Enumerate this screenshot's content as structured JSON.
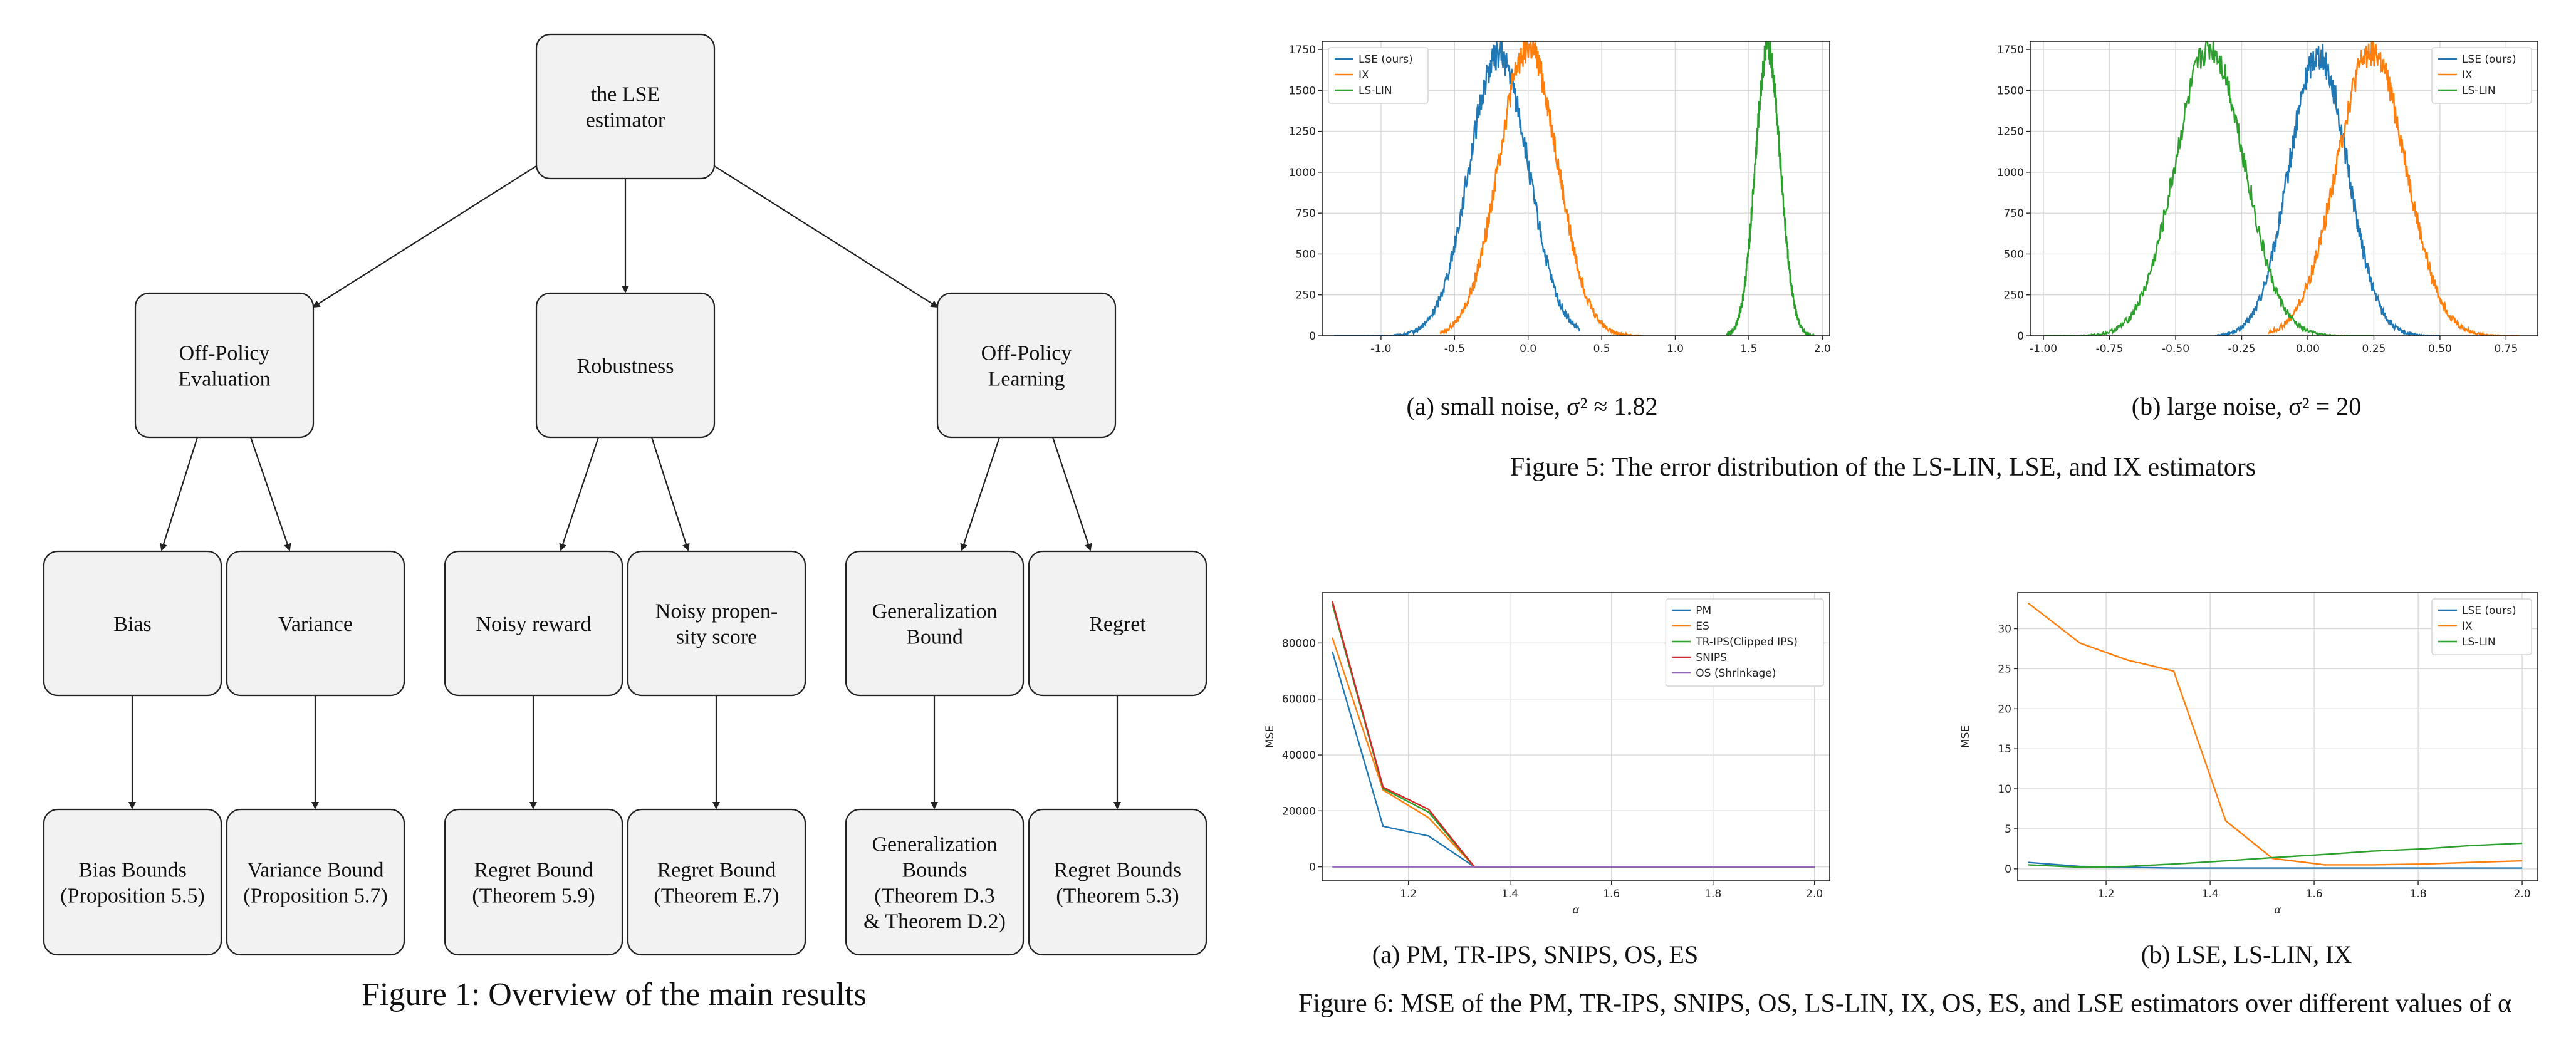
{
  "figure1": {
    "caption": "Figure 1: Overview of the main results",
    "nodes": {
      "root": [
        "the LSE",
        "estimator"
      ],
      "ope": [
        "Off-Policy",
        "Evaluation"
      ],
      "robust": [
        "Robustness"
      ],
      "opl": [
        "Off-Policy",
        "Learning"
      ],
      "bias": [
        "Bias"
      ],
      "variance": [
        "Variance"
      ],
      "noisy_reward": [
        "Noisy reward"
      ],
      "noisy_prop": [
        "Noisy propen-",
        "sity score"
      ],
      "gen_bound": [
        "Generalization",
        "Bound"
      ],
      "regret": [
        "Regret"
      ],
      "bias_bounds": [
        "Bias Bounds",
        "(Proposition 5.5)"
      ],
      "var_bound": [
        "Variance Bound",
        "(Proposition 5.7)"
      ],
      "regret_59": [
        "Regret Bound",
        "(Theorem 5.9)"
      ],
      "regret_e7": [
        "Regret Bound",
        "(Theorem E.7)"
      ],
      "gen_bounds": [
        "Generalization",
        "Bounds",
        "(Theorem D.3",
        "& Theorem D.2)"
      ],
      "regret_53": [
        "Regret Bounds",
        "(Theorem 5.3)"
      ]
    }
  },
  "figure5": {
    "caption": "Figure 5: The error distribution of the LS-LIN, LSE, and IX estimators",
    "sub_a_caption": "(a) small noise, σ² ≈ 1.82",
    "sub_b_caption": "(b) large noise, σ² = 20"
  },
  "figure6": {
    "caption": "Figure 6: MSE of the PM, TR-IPS, SNIPS, OS, LS-LIN, IX, OS, ES, and LSE estimators over different values of α",
    "sub_a_caption": "(a) PM, TR-IPS, SNIPS, OS, ES",
    "sub_b_caption": "(b) LSE, LS-LIN, IX"
  },
  "chart_data": [
    {
      "id": "fig5a",
      "type": "line",
      "title": "",
      "xlabel": "",
      "ylabel": "",
      "xlim": [
        -1.4,
        2.05
      ],
      "ylim": [
        0,
        1800
      ],
      "xticks": [
        "-1.0",
        "-0.5",
        "0.0",
        "0.5",
        "1.0",
        "1.5",
        "2.0"
      ],
      "xtick_values": [
        -1.0,
        -0.5,
        0.0,
        0.5,
        1.0,
        1.5,
        2.0
      ],
      "yticks": [
        "0",
        "250",
        "500",
        "750",
        "1000",
        "1250",
        "1500",
        "1750"
      ],
      "ytick_values": [
        0,
        250,
        500,
        750,
        1000,
        1250,
        1500,
        1750
      ],
      "grid": true,
      "legend_position": "top-left",
      "series": [
        {
          "name": "LSE (ours)",
          "color": "#1f77b4",
          "distribution": {
            "mean": -0.2,
            "sd": 0.2,
            "peak": 1720,
            "min": -1.32,
            "max": 0.35
          }
        },
        {
          "name": "IX",
          "color": "#ff7f0e",
          "distribution": {
            "mean": 0.0,
            "sd": 0.2,
            "peak": 1760,
            "min": -0.6,
            "max": 0.78
          }
        },
        {
          "name": "LS-LIN",
          "color": "#2ca02c",
          "distribution": {
            "mean": 1.63,
            "sd": 0.085,
            "peak": 1760,
            "min": 1.35,
            "max": 1.95
          }
        }
      ]
    },
    {
      "id": "fig5b",
      "type": "line",
      "title": "",
      "xlabel": "",
      "ylabel": "",
      "xlim": [
        -1.05,
        0.87
      ],
      "ylim": [
        0,
        1800
      ],
      "xticks": [
        "-1.00",
        "-0.75",
        "-0.50",
        "-0.25",
        "0.00",
        "0.25",
        "0.50",
        "0.75"
      ],
      "xtick_values": [
        -1.0,
        -0.75,
        -0.5,
        -0.25,
        0.0,
        0.25,
        0.5,
        0.75
      ],
      "yticks": [
        "0",
        "250",
        "500",
        "750",
        "1000",
        "1250",
        "1500",
        "1750"
      ],
      "ytick_values": [
        0,
        250,
        500,
        750,
        1000,
        1250,
        1500,
        1750
      ],
      "grid": true,
      "legend_position": "top-right",
      "series": [
        {
          "name": "LSE (ours)",
          "color": "#1f77b4",
          "distribution": {
            "mean": 0.04,
            "sd": 0.11,
            "peak": 1720,
            "min": -0.35,
            "max": 0.5
          }
        },
        {
          "name": "IX",
          "color": "#ff7f0e",
          "distribution": {
            "mean": 0.24,
            "sd": 0.13,
            "peak": 1740,
            "min": -0.15,
            "max": 0.8
          }
        },
        {
          "name": "LS-LIN",
          "color": "#2ca02c",
          "distribution": {
            "mean": -0.37,
            "sd": 0.13,
            "peak": 1760,
            "min": -1.0,
            "max": 0.25
          }
        }
      ]
    },
    {
      "id": "fig6a",
      "type": "line",
      "title": "",
      "xlabel": "α",
      "ylabel": "MSE",
      "xlim": [
        1.03,
        2.03
      ],
      "ylim": [
        -5000,
        98000
      ],
      "xticks": [
        "1.2",
        "1.4",
        "1.6",
        "1.8",
        "2.0"
      ],
      "xtick_values": [
        1.2,
        1.4,
        1.6,
        1.8,
        2.0
      ],
      "yticks": [
        "0",
        "20000",
        "40000",
        "60000",
        "80000"
      ],
      "ytick_values": [
        0,
        20000,
        40000,
        60000,
        80000
      ],
      "grid": true,
      "legend_position": "top-right",
      "x": [
        1.05,
        1.15,
        1.24,
        1.33,
        1.43,
        1.52,
        1.62,
        1.71,
        1.81,
        1.9,
        2.0
      ],
      "series": [
        {
          "name": "PM",
          "color": "#1f77b4",
          "values": [
            77000,
            14500,
            11000,
            0,
            0,
            0,
            0,
            0,
            0,
            0,
            0
          ]
        },
        {
          "name": "ES",
          "color": "#ff7f0e",
          "values": [
            82000,
            27500,
            17500,
            0,
            0,
            0,
            0,
            0,
            0,
            0,
            0
          ]
        },
        {
          "name": "TR-IPS(Clipped IPS)",
          "color": "#2ca02c",
          "values": [
            94000,
            28000,
            19500,
            0,
            0,
            0,
            0,
            0,
            0,
            0,
            0
          ]
        },
        {
          "name": "SNIPS",
          "color": "#d62728",
          "values": [
            95000,
            28500,
            20500,
            0,
            0,
            0,
            0,
            0,
            0,
            0,
            0
          ]
        },
        {
          "name": "OS (Shrinkage)",
          "color": "#9467bd",
          "values": [
            0,
            0,
            0,
            0,
            0,
            0,
            0,
            0,
            0,
            0,
            0
          ]
        }
      ]
    },
    {
      "id": "fig6b",
      "type": "line",
      "title": "",
      "xlabel": "α",
      "ylabel": "MSE",
      "xlim": [
        1.03,
        2.03
      ],
      "ylim": [
        -1.5,
        34.5
      ],
      "xticks": [
        "1.2",
        "1.4",
        "1.6",
        "1.8",
        "2.0"
      ],
      "xtick_values": [
        1.2,
        1.4,
        1.6,
        1.8,
        2.0
      ],
      "yticks": [
        "0",
        "5",
        "10",
        "15",
        "20",
        "25",
        "30"
      ],
      "ytick_values": [
        0,
        5,
        10,
        15,
        20,
        25,
        30
      ],
      "grid": true,
      "legend_position": "top-right",
      "x": [
        1.05,
        1.15,
        1.24,
        1.33,
        1.43,
        1.52,
        1.62,
        1.71,
        1.81,
        1.9,
        2.0
      ],
      "series": [
        {
          "name": "LSE (ours)",
          "color": "#1f77b4",
          "values": [
            0.8,
            0.3,
            0.2,
            0.1,
            0.1,
            0.1,
            0.1,
            0.1,
            0.1,
            0.1,
            0.1
          ]
        },
        {
          "name": "IX",
          "color": "#ff7f0e",
          "values": [
            33.2,
            28.2,
            26.1,
            24.7,
            6.0,
            1.3,
            0.5,
            0.5,
            0.6,
            0.8,
            1.0
          ]
        },
        {
          "name": "LS-LIN",
          "color": "#2ca02c",
          "values": [
            0.5,
            0.2,
            0.3,
            0.6,
            1.0,
            1.4,
            1.8,
            2.2,
            2.5,
            2.9,
            3.2
          ]
        }
      ]
    }
  ]
}
